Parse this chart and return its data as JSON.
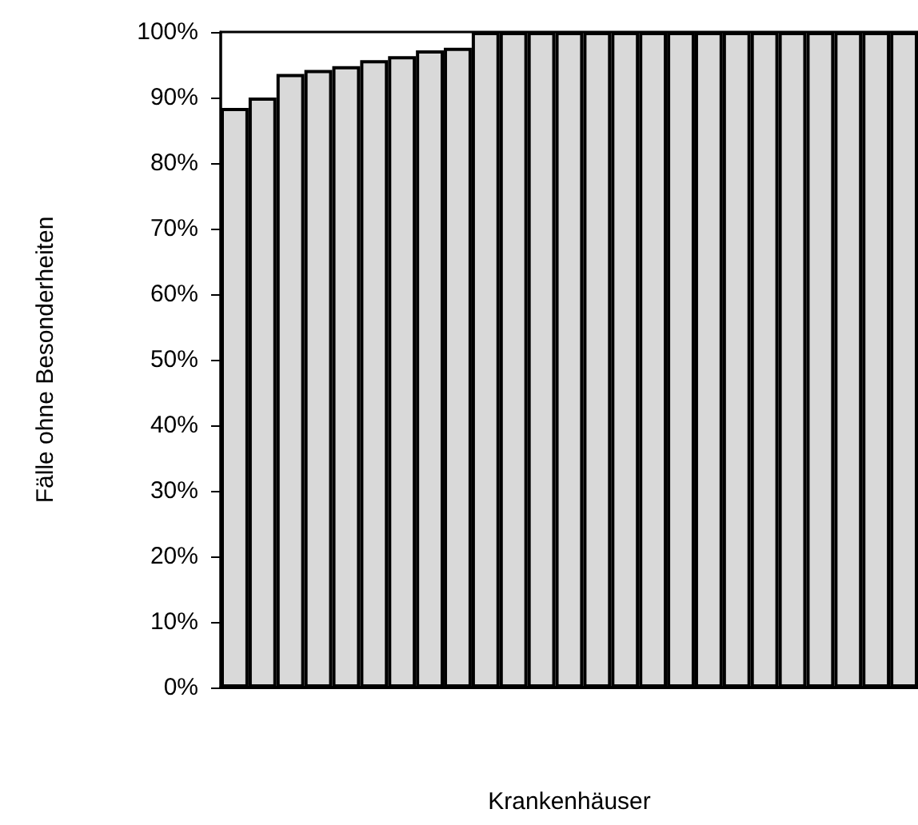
{
  "chart_data": {
    "type": "bar",
    "xlabel": "Krankenhäuser",
    "ylabel": "Fälle ohne Besonderheiten",
    "categories": [
      null,
      null,
      null,
      null,
      null,
      null,
      null,
      null,
      null,
      null,
      null,
      null,
      null,
      null,
      null,
      null,
      null,
      null,
      null,
      null,
      null,
      null,
      null,
      null,
      null
    ],
    "series": [
      {
        "color": "#d9d9d9",
        "values": [
          88.4,
          90,
          93.6,
          94.2,
          94.8,
          95.7,
          96.3,
          97.2,
          97.6,
          100,
          100,
          100,
          100,
          100,
          100,
          100,
          100,
          100,
          100,
          100,
          100,
          100,
          100,
          100,
          100
        ]
      }
    ],
    "ylim": [
      0,
      100
    ],
    "yticks": [
      {
        "value": 0,
        "label": "0%"
      },
      {
        "value": 10,
        "label": "10%"
      },
      {
        "value": 20,
        "label": "20%"
      },
      {
        "value": 30,
        "label": "30%"
      },
      {
        "value": 40,
        "label": "40%"
      },
      {
        "value": 50,
        "label": "50%"
      },
      {
        "value": 60,
        "label": "60%"
      },
      {
        "value": 70,
        "label": "70%"
      },
      {
        "value": 80,
        "label": "80%"
      },
      {
        "value": 90,
        "label": "90%"
      },
      {
        "value": 100,
        "label": "100%"
      }
    ],
    "grid": false
  }
}
